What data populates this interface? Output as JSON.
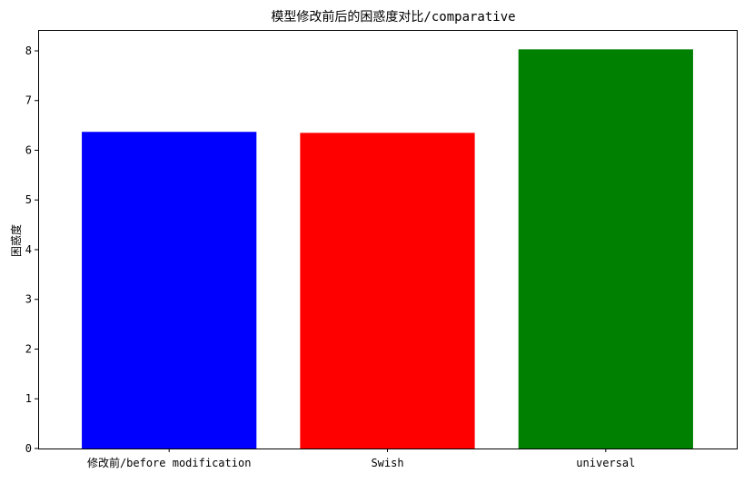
{
  "chart_data": {
    "type": "bar",
    "title": "模型修改前后的困惑度对比/comparative",
    "xlabel": "",
    "ylabel": "困惑度",
    "categories": [
      "修改前/before modification",
      "Swish",
      "universal"
    ],
    "values": [
      6.37,
      6.35,
      8.03
    ],
    "colors": [
      "#0000ff",
      "#ff0000",
      "#008000"
    ],
    "ylim": [
      0,
      8.42
    ],
    "yticks": [
      "0",
      "1",
      "2",
      "3",
      "4",
      "5",
      "6",
      "7",
      "8"
    ],
    "grid": false,
    "legend": "none"
  }
}
